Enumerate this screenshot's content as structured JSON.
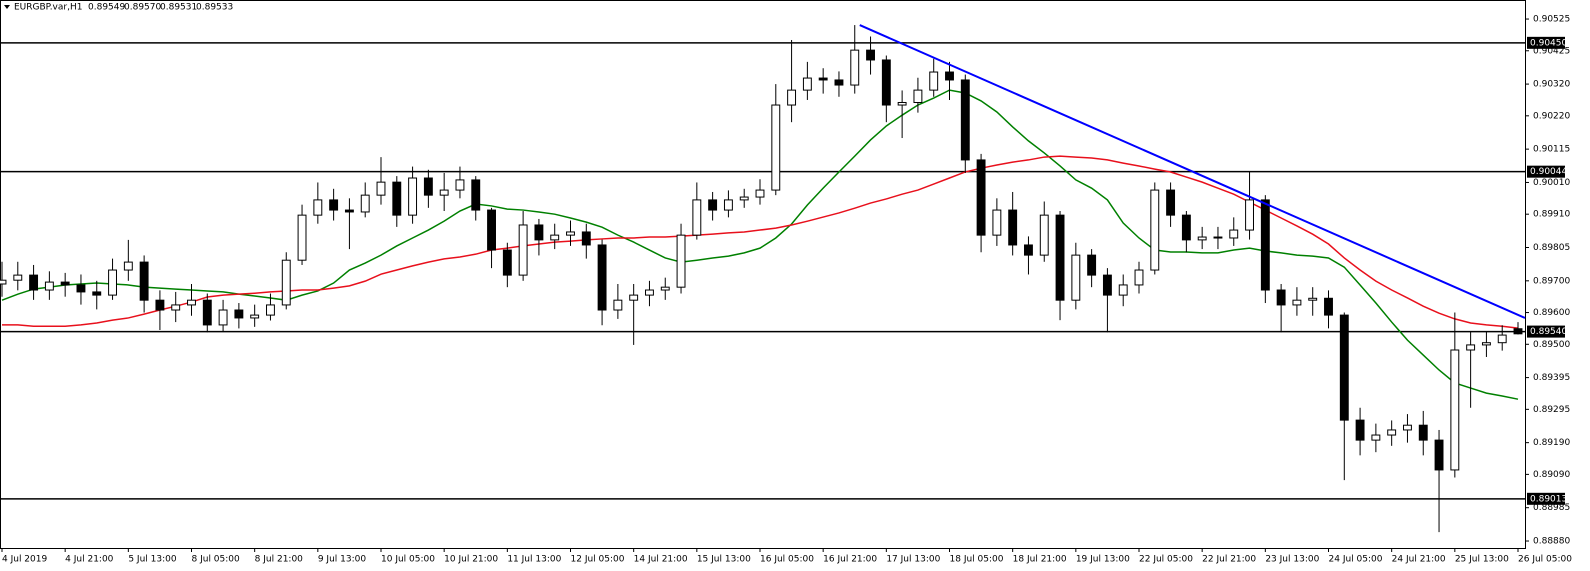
{
  "chart_data": {
    "type": "candlestick",
    "title": "EURGBP.var,H1",
    "header_values": [
      "0.89549",
      "0.89570",
      "0.89531",
      "0.89533"
    ],
    "categories": [
      "4 Jul 2019",
      null,
      null,
      null,
      "4 Jul 21:00",
      null,
      null,
      null,
      "5 Jul 13:00",
      null,
      null,
      null,
      "8 Jul 05:00",
      null,
      null,
      null,
      "8 Jul 21:00",
      null,
      null,
      null,
      "9 Jul 13:00",
      null,
      null,
      null,
      "10 Jul 05:00",
      null,
      null,
      null,
      "10 Jul 21:00",
      null,
      null,
      null,
      "11 Jul 13:00",
      null,
      null,
      null,
      "12 Jul 05:00",
      null,
      null,
      null,
      "14 Jul 21:00",
      null,
      null,
      null,
      "15 Jul 13:00",
      null,
      null,
      null,
      "16 Jul 05:00",
      null,
      null,
      null,
      "16 Jul 21:00",
      null,
      null,
      null,
      "17 Jul 13:00",
      null,
      null,
      null,
      "18 Jul 05:00",
      null,
      null,
      null,
      "18 Jul 21:00",
      null,
      null,
      null,
      "19 Jul 13:00",
      null,
      null,
      null,
      "22 Jul 05:00",
      null,
      null,
      null,
      "22 Jul 21:00",
      null,
      null,
      null,
      "23 Jul 13:00",
      null,
      null,
      null,
      "24 Jul 05:00",
      null,
      null,
      null,
      "24 Jul 21:00",
      null,
      null,
      null,
      "25 Jul 13:00",
      null,
      null,
      null,
      "26 Jul 05:00"
    ],
    "open": [
      0.8969,
      0.89702,
      0.89718,
      0.89671,
      0.89696,
      0.89687,
      0.89665,
      0.89655,
      0.89734,
      0.89759,
      0.89639,
      0.89608,
      0.89624,
      0.89639,
      0.89561,
      0.89608,
      0.89583,
      0.89592,
      0.89624,
      0.89765,
      0.89907,
      0.89955,
      0.89923,
      0.89917,
      0.8997,
      0.90011,
      0.89907,
      0.90024,
      0.8997,
      0.89986,
      0.90018,
      0.89923,
      0.89797,
      0.89718,
      0.89876,
      0.89829,
      0.89844,
      0.89854,
      0.89813,
      0.89608,
      0.89639,
      0.89655,
      0.89671,
      0.8968,
      0.89844,
      0.89955,
      0.89923,
      0.89955,
      0.89964,
      0.89986,
      0.90254,
      0.90301,
      0.90339,
      0.90333,
      0.90317,
      0.90427,
      0.90396,
      0.90254,
      0.90262,
      0.90301,
      0.90358,
      0.90333,
      0.90081,
      0.89844,
      0.89923,
      0.89813,
      0.89781,
      0.89907,
      0.89639,
      0.89781,
      0.89718,
      0.89655,
      0.89687,
      0.89734,
      0.89986,
      0.89907,
      0.89829,
      0.89838,
      0.89835,
      0.8986,
      0.89955,
      0.89671,
      0.89624,
      0.89639,
      0.89645,
      0.89592,
      0.89261,
      0.89198,
      0.89214,
      0.8923,
      0.89245,
      0.89198,
      0.89104,
      0.89482,
      0.89498,
      0.89505,
      0.89549
    ],
    "high": [
      0.8976,
      0.8976,
      0.8975,
      0.8973,
      0.89725,
      0.8972,
      0.897,
      0.8977,
      0.89829,
      0.8978,
      0.8967,
      0.89665,
      0.8969,
      0.8966,
      0.8964,
      0.8963,
      0.89625,
      0.8966,
      0.8979,
      0.8994,
      0.9001,
      0.8999,
      0.8996,
      0.9001,
      0.9009,
      0.9003,
      0.9006,
      0.9005,
      0.9004,
      0.9006,
      0.9003,
      0.8993,
      0.8982,
      0.8992,
      0.89895,
      0.8988,
      0.8989,
      0.8988,
      0.8983,
      0.8969,
      0.8969,
      0.897,
      0.8971,
      0.8988,
      0.9001,
      0.8998,
      0.89985,
      0.8999,
      0.9002,
      0.9032,
      0.90459,
      0.9039,
      0.9037,
      0.9036,
      0.90506,
      0.9047,
      0.9041,
      0.903,
      0.9034,
      0.904,
      0.9039,
      0.9035,
      0.901,
      0.8996,
      0.8998,
      0.8984,
      0.8995,
      0.8992,
      0.8982,
      0.898,
      0.8974,
      0.8972,
      0.8976,
      0.9001,
      0.9001,
      0.8992,
      0.8987,
      0.8987,
      0.899,
      0.90043,
      0.8997,
      0.8969,
      0.8968,
      0.8968,
      0.8967,
      0.896,
      0.893,
      0.8925,
      0.8926,
      0.8928,
      0.8929,
      0.8923,
      0.896,
      0.8954,
      0.8954,
      0.8956,
      0.8957
    ],
    "low": [
      0.8965,
      0.8967,
      0.8964,
      0.8964,
      0.8965,
      0.89625,
      0.8961,
      0.8964,
      0.897,
      0.896,
      0.89545,
      0.8957,
      0.8959,
      0.89538,
      0.8954,
      0.8955,
      0.89555,
      0.89575,
      0.8961,
      0.8975,
      0.8988,
      0.8989,
      0.898,
      0.899,
      0.8994,
      0.8987,
      0.8988,
      0.8993,
      0.8992,
      0.8996,
      0.8989,
      0.8974,
      0.8968,
      0.897,
      0.8978,
      0.898,
      0.8981,
      0.8977,
      0.8956,
      0.8958,
      0.89498,
      0.8962,
      0.8964,
      0.8966,
      0.8983,
      0.8989,
      0.899,
      0.8993,
      0.8994,
      0.8997,
      0.902,
      0.9027,
      0.9029,
      0.9028,
      0.9029,
      0.9035,
      0.902,
      0.9015,
      0.9023,
      0.9028,
      0.9027,
      0.9004,
      0.8979,
      0.8981,
      0.8978,
      0.8972,
      0.8976,
      0.89576,
      0.8961,
      0.8968,
      0.89538,
      0.8962,
      0.8966,
      0.8972,
      0.8987,
      0.8979,
      0.898,
      0.898,
      0.8981,
      0.8983,
      0.8963,
      0.89538,
      0.8959,
      0.8959,
      0.8955,
      0.89072,
      0.8915,
      0.8916,
      0.8918,
      0.8919,
      0.8915,
      0.88908,
      0.8908,
      0.893,
      0.8946,
      0.8948,
      0.89531
    ],
    "close": [
      0.89702,
      0.89718,
      0.89671,
      0.89696,
      0.89687,
      0.89665,
      0.89655,
      0.89734,
      0.89759,
      0.89639,
      0.89608,
      0.89624,
      0.89639,
      0.89561,
      0.89608,
      0.89583,
      0.89592,
      0.89624,
      0.89765,
      0.89907,
      0.89955,
      0.89923,
      0.89917,
      0.8997,
      0.90011,
      0.89907,
      0.90024,
      0.8997,
      0.89986,
      0.90018,
      0.89923,
      0.89797,
      0.89718,
      0.89876,
      0.89829,
      0.89844,
      0.89854,
      0.89813,
      0.89608,
      0.89639,
      0.89655,
      0.89671,
      0.8968,
      0.89844,
      0.89955,
      0.89923,
      0.89955,
      0.89964,
      0.89986,
      0.90254,
      0.90301,
      0.90339,
      0.90333,
      0.90317,
      0.90427,
      0.90396,
      0.90254,
      0.90262,
      0.90301,
      0.90358,
      0.90333,
      0.90081,
      0.89844,
      0.89923,
      0.89813,
      0.89781,
      0.89907,
      0.89639,
      0.89781,
      0.89718,
      0.89655,
      0.89687,
      0.89734,
      0.89986,
      0.89907,
      0.89829,
      0.89838,
      0.89835,
      0.8986,
      0.89955,
      0.89671,
      0.89624,
      0.89639,
      0.89645,
      0.89592,
      0.89261,
      0.89198,
      0.89214,
      0.8923,
      0.89245,
      0.89198,
      0.89104,
      0.89482,
      0.89498,
      0.89505,
      0.89529,
      0.89533
    ],
    "overlays": [
      {
        "color": "#008000",
        "values": [
          0.89639,
          0.89658,
          0.89674,
          0.8968,
          0.89687,
          0.8969,
          0.89693,
          0.8969,
          0.89687,
          0.8968,
          0.89677,
          0.89674,
          0.89671,
          0.89668,
          0.89665,
          0.89658,
          0.89652,
          0.89646,
          0.89639,
          0.89655,
          0.89668,
          0.89693,
          0.89734,
          0.89756,
          0.89781,
          0.8981,
          0.89835,
          0.8986,
          0.89888,
          0.8992,
          0.89942,
          0.89936,
          0.89926,
          0.89923,
          0.89917,
          0.8991,
          0.89898,
          0.89885,
          0.89869,
          0.89844,
          0.89822,
          0.89797,
          0.89772,
          0.89759,
          0.89765,
          0.89772,
          0.89778,
          0.89788,
          0.89803,
          0.89835,
          0.89879,
          0.89939,
          0.89992,
          0.90043,
          0.90093,
          0.90144,
          0.90188,
          0.90222,
          0.90254,
          0.90276,
          0.90301,
          0.90292,
          0.90267,
          0.90232,
          0.90185,
          0.90141,
          0.90103,
          0.90062,
          0.90018,
          0.89992,
          0.89955,
          0.89882,
          0.89835,
          0.89797,
          0.89791,
          0.89791,
          0.89788,
          0.89788,
          0.89797,
          0.89803,
          0.89794,
          0.89788,
          0.89781,
          0.89778,
          0.89772,
          0.89743,
          0.89687,
          0.8963,
          0.8957,
          0.89513,
          0.89466,
          0.89419,
          0.89378,
          0.89362,
          0.89346,
          0.89337,
          0.89327
        ]
      },
      {
        "color": "#e8101c",
        "values": [
          0.89561,
          0.89561,
          0.89557,
          0.89557,
          0.89557,
          0.89561,
          0.89567,
          0.89576,
          0.89583,
          0.89595,
          0.89608,
          0.8962,
          0.89633,
          0.89649,
          0.89655,
          0.89658,
          0.89661,
          0.89665,
          0.89668,
          0.89671,
          0.89671,
          0.89677,
          0.89684,
          0.89699,
          0.89721,
          0.89734,
          0.89747,
          0.89759,
          0.89769,
          0.89775,
          0.89784,
          0.89797,
          0.89803,
          0.8981,
          0.89816,
          0.89822,
          0.89825,
          0.89829,
          0.89832,
          0.89835,
          0.89835,
          0.89838,
          0.89838,
          0.89841,
          0.89844,
          0.89847,
          0.89851,
          0.89854,
          0.8986,
          0.89866,
          0.89876,
          0.89888,
          0.89901,
          0.89914,
          0.89929,
          0.89945,
          0.89958,
          0.89973,
          0.89986,
          0.90005,
          0.90024,
          0.90043,
          0.90055,
          0.90065,
          0.90074,
          0.90081,
          0.9009,
          0.90093,
          0.9009,
          0.90087,
          0.90081,
          0.90071,
          0.90062,
          0.90052,
          0.90043,
          0.90027,
          0.90011,
          0.89992,
          0.89973,
          0.89948,
          0.89923,
          0.89898,
          0.89873,
          0.89847,
          0.89816,
          0.89772,
          0.89734,
          0.89699,
          0.89671,
          0.89646,
          0.8962,
          0.89598,
          0.8958,
          0.89567,
          0.89561,
          0.89557,
          0.89551
        ]
      }
    ],
    "trendline": {
      "color": "#0000ff",
      "start": 0.90506,
      "end": 0.89583
    },
    "levels": [
      {
        "value": 0.9045,
        "label": "0.90450"
      },
      0.90044,
      {
        "value": 0.8954,
        "label": "0.89540"
      },
      0.89013
    ],
    "up_color": "#ffffff",
    "down_color": "#000000",
    "ylim": [
      0.88858,
      0.90585
    ],
    "yticks": [
      0.90525,
      0.90425,
      {
        "value": 0.9032,
        "label": "0.90320"
      },
      {
        "value": 0.9022,
        "label": "0.90220"
      },
      0.90115,
      {
        "value": 0.9001,
        "label": "0.90010"
      },
      {
        "value": 0.8991,
        "label": "0.89910"
      },
      0.89805,
      {
        "value": 0.897,
        "label": "0.89700"
      },
      {
        "value": 0.896,
        "label": "0.89600"
      },
      {
        "value": 0.895,
        "label": "0.89500"
      },
      0.89395,
      0.89295,
      {
        "value": 0.8919,
        "label": "0.89190"
      },
      {
        "value": 0.8909,
        "label": "0.89090"
      },
      0.88985,
      {
        "value": 0.8888,
        "label": "0.88880"
      }
    ]
  }
}
